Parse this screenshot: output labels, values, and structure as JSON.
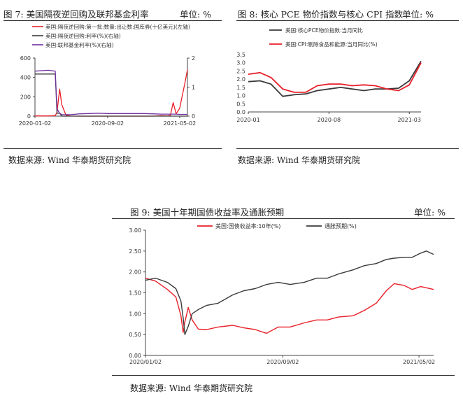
{
  "figures": {
    "fig7": {
      "title": "图 7: 美国隔夜逆回购及联邦基金利率",
      "unit": "单位: %",
      "source": "数据来源: Wind 华泰期货研究院"
    },
    "fig8": {
      "title": "图 8: 核心 PCE 物价指数与核心 CPI 指数",
      "unit": "单位: %",
      "source": "数据来源: Wind 华泰期货研究院"
    },
    "fig9": {
      "title": "图 9: 美国十年期国债收益率及通胀预期",
      "unit": "单位: %",
      "source": "数据来源: Wind 华泰期货研究院"
    }
  },
  "colors": {
    "red": "#e8202a",
    "black": "#3a3a3a",
    "purple": "#7030a0"
  },
  "chart_data": [
    {
      "type": "line",
      "x_ticks": [
        "2020-01-02",
        "2020-09-02",
        "2021-05-02"
      ],
      "x": [
        "2020-01-02",
        "2020-02-15",
        "2020-03-10",
        "2020-03-16",
        "2020-03-25",
        "2020-04-01",
        "2020-04-15",
        "2020-05-01",
        "2020-06-01",
        "2020-07-01",
        "2020-08-01",
        "2020-09-02",
        "2020-10-01",
        "2020-11-01",
        "2020-12-01",
        "2021-01-01",
        "2021-02-01",
        "2021-03-01",
        "2021-03-20",
        "2021-04-01",
        "2021-04-10",
        "2021-04-20",
        "2021-05-02",
        "2021-05-10",
        "2021-05-20",
        "2021-05-28"
      ],
      "yleft_lim": [
        0,
        600
      ],
      "yleft_ticks": [
        0,
        200,
        400,
        600
      ],
      "yright_lim": [
        0,
        2
      ],
      "yright_ticks": [
        0,
        1,
        2
      ],
      "series": [
        {
          "name": "美国:隔夜逆回购:第一批:数量:出让数:国库券(十亿美元)(左轴)",
          "color": "#e8202a",
          "axis": "left",
          "values": [
            2,
            2,
            5,
            40,
            280,
            120,
            10,
            1,
            0,
            0,
            0,
            0,
            0,
            0,
            0,
            0,
            0,
            5,
            2,
            10,
            140,
            25,
            80,
            200,
            350,
            480
          ]
        },
        {
          "name": "美国:隔夜逆回购:利率(%)(右轴)",
          "color": "#3a3a3a",
          "axis": "right",
          "values": [
            1.45,
            1.45,
            1.45,
            0.1,
            0.1,
            0,
            0,
            0,
            0,
            0,
            0,
            0,
            0,
            0,
            0,
            0,
            0,
            0,
            0,
            0,
            0,
            0,
            0,
            0,
            0,
            0
          ]
        },
        {
          "name": "美国:联邦基金利率(%)(右轴)",
          "color": "#7030a0",
          "axis": "right",
          "values": [
            1.55,
            1.58,
            1.55,
            0.25,
            0.1,
            0.05,
            0.05,
            0.05,
            0.08,
            0.09,
            0.1,
            0.09,
            0.09,
            0.09,
            0.09,
            0.09,
            0.08,
            0.07,
            0.07,
            0.07,
            0.07,
            0.07,
            0.06,
            0.06,
            0.06,
            0.06
          ]
        }
      ]
    },
    {
      "type": "line",
      "x_ticks": [
        "2020-01",
        "2020-08",
        "2021-03"
      ],
      "x": [
        "2020-01",
        "2020-02",
        "2020-03",
        "2020-04",
        "2020-05",
        "2020-06",
        "2020-07",
        "2020-08",
        "2020-09",
        "2020-10",
        "2020-11",
        "2020-12",
        "2021-01",
        "2021-02",
        "2021-03",
        "2021-04"
      ],
      "ylim": [
        0,
        3.5
      ],
      "y_ticks": [
        0.0,
        0.5,
        1.0,
        1.5,
        2.0,
        2.5,
        3.0,
        3.5
      ],
      "series": [
        {
          "name": "美国:核心PCE物价指数:当月同比",
          "color": "#3a3a3a",
          "values": [
            1.85,
            1.9,
            1.7,
            0.95,
            1.05,
            1.1,
            1.3,
            1.4,
            1.5,
            1.4,
            1.3,
            1.4,
            1.4,
            1.45,
            1.9,
            3.1
          ]
        },
        {
          "name": "美国:CPI:剔除食品和能源:当月同比(%)",
          "color": "#e8202a",
          "values": [
            2.3,
            2.4,
            2.1,
            1.4,
            1.2,
            1.2,
            1.6,
            1.7,
            1.7,
            1.6,
            1.65,
            1.6,
            1.4,
            1.3,
            1.65,
            3.0
          ]
        }
      ]
    },
    {
      "type": "line",
      "x_ticks": [
        "2020/01/02",
        "2020/09/02",
        "2021/05/02"
      ],
      "x": [
        "2020-01-02",
        "2020-01-20",
        "2020-02-10",
        "2020-02-25",
        "2020-03-05",
        "2020-03-09",
        "2020-03-12",
        "2020-03-18",
        "2020-03-25",
        "2020-04-05",
        "2020-04-20",
        "2020-05-10",
        "2020-06-05",
        "2020-06-25",
        "2020-07-15",
        "2020-08-04",
        "2020-08-25",
        "2020-09-15",
        "2020-10-10",
        "2020-11-01",
        "2020-11-20",
        "2020-12-10",
        "2021-01-05",
        "2021-01-25",
        "2021-02-15",
        "2021-03-05",
        "2021-03-19",
        "2021-04-05",
        "2021-04-20",
        "2021-05-05",
        "2021-05-15",
        "2021-05-28"
      ],
      "ylim": [
        0,
        3
      ],
      "y_ticks": [
        0.0,
        0.5,
        1.0,
        1.5,
        2.0,
        2.5,
        3.0
      ],
      "series": [
        {
          "name": "美国:国债收益率:10年(%)",
          "color": "#e8202a",
          "values": [
            1.85,
            1.78,
            1.58,
            1.4,
            0.95,
            0.55,
            0.8,
            1.15,
            0.85,
            0.63,
            0.62,
            0.68,
            0.72,
            0.66,
            0.62,
            0.53,
            0.68,
            0.68,
            0.78,
            0.85,
            0.85,
            0.92,
            0.95,
            1.08,
            1.25,
            1.55,
            1.72,
            1.68,
            1.58,
            1.65,
            1.62,
            1.58
          ]
        },
        {
          "name": "通胀预期(%)",
          "color": "#3a3a3a",
          "values": [
            1.8,
            1.85,
            1.75,
            1.6,
            1.3,
            0.9,
            0.5,
            0.7,
            1.0,
            1.1,
            1.2,
            1.25,
            1.45,
            1.55,
            1.6,
            1.7,
            1.75,
            1.7,
            1.75,
            1.85,
            1.85,
            1.95,
            2.05,
            2.15,
            2.2,
            2.3,
            2.33,
            2.35,
            2.35,
            2.45,
            2.5,
            2.42
          ]
        }
      ]
    }
  ]
}
